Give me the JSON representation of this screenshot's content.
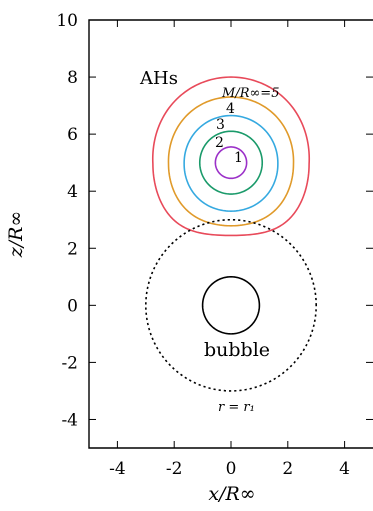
{
  "chart_data": {
    "type": "line",
    "xlabel": "x/R∞",
    "ylabel": "z/R∞",
    "xlim": [
      -5,
      5
    ],
    "ylim": [
      -5,
      10
    ],
    "x_ticks": [
      -4,
      -2,
      0,
      2,
      4
    ],
    "y_ticks": [
      -4,
      -2,
      0,
      2,
      4,
      6,
      8,
      10
    ],
    "x_tick_labels": [
      "-4",
      "-2",
      "0",
      "2",
      "4"
    ],
    "y_tick_labels": [
      "-4",
      "-2",
      "0",
      "2",
      "4",
      "6",
      "8",
      "10"
    ],
    "grid": false,
    "annotations": {
      "ahs": "AHs",
      "mass_label": "M/R∞=5",
      "bubble": "bubble",
      "radius": "r = r₁"
    },
    "series": [
      {
        "name": "1",
        "color": "#9b30c8",
        "style": "solid",
        "center": [
          0,
          5.0
        ],
        "radius_x": 0.55,
        "radius_y": 0.55,
        "top_bulge": 0,
        "bottom_sag": 0
      },
      {
        "name": "2",
        "color": "#1a9a6a",
        "style": "solid",
        "center": [
          0,
          5.0
        ],
        "radius_x": 1.1,
        "radius_y": 1.1,
        "top_bulge": 0,
        "bottom_sag": 0
      },
      {
        "name": "3",
        "color": "#35a9e0",
        "style": "solid",
        "center": [
          0,
          4.95
        ],
        "radius_x": 1.65,
        "radius_y": 1.7,
        "top_bulge": 0.02,
        "bottom_sag": 0.03
      },
      {
        "name": "4",
        "color": "#e09a2a",
        "style": "solid",
        "center": [
          0,
          4.95
        ],
        "radius_x": 2.2,
        "radius_y": 2.35,
        "top_bulge": 0.04,
        "bottom_sag": 0.08
      },
      {
        "name": "5",
        "color": "#e84a5a",
        "style": "solid",
        "center": [
          0,
          4.95
        ],
        "radius_x": 2.75,
        "radius_y": 3.05,
        "top_bulge": 0.06,
        "bottom_sag": 0.18
      },
      {
        "name": "bubble",
        "color": "#000000",
        "style": "solid",
        "center": [
          0,
          0
        ],
        "radius_x": 1.0,
        "radius_y": 1.0,
        "top_bulge": 0,
        "bottom_sag": 0
      },
      {
        "name": "r1",
        "color": "#000000",
        "style": "dotted",
        "center": [
          0,
          0
        ],
        "radius_x": 3.0,
        "radius_y": 3.0,
        "top_bulge": 0,
        "bottom_sag": 0
      }
    ]
  }
}
